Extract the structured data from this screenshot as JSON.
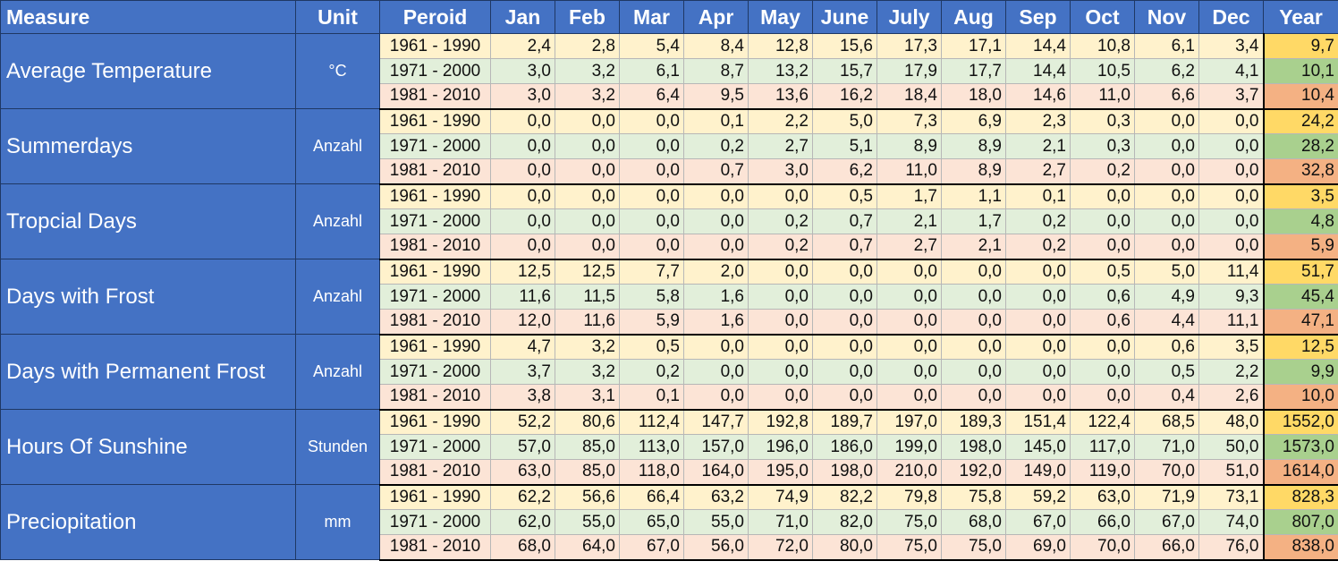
{
  "headers": {
    "measure": "Measure",
    "unit": "Unit",
    "period": "Peroid",
    "months": [
      "Jan",
      "Feb",
      "Mar",
      "Apr",
      "May",
      "June",
      "July",
      "Aug",
      "Sep",
      "Oct",
      "Nov",
      "Dec"
    ],
    "year": "Year"
  },
  "colors": {
    "header_bg": "#4472c4",
    "period_1961_bg": "#fff2cc",
    "period_1971_bg": "#e2efda",
    "period_1981_bg": "#fce4d6",
    "year_1961_bg": "#ffd966",
    "year_1971_bg": "#a9d08e",
    "year_1981_bg": "#f4b183"
  },
  "measures": [
    {
      "name": "Average Temperature",
      "unit": "°C",
      "rows": [
        {
          "period": "1961 - 1990",
          "values": [
            "2,4",
            "2,8",
            "5,4",
            "8,4",
            "12,8",
            "15,6",
            "17,3",
            "17,1",
            "14,4",
            "10,8",
            "6,1",
            "3,4"
          ],
          "year": "9,7"
        },
        {
          "period": "1971 - 2000",
          "values": [
            "3,0",
            "3,2",
            "6,1",
            "8,7",
            "13,2",
            "15,7",
            "17,9",
            "17,7",
            "14,4",
            "10,5",
            "6,2",
            "4,1"
          ],
          "year": "10,1"
        },
        {
          "period": "1981 - 2010",
          "values": [
            "3,0",
            "3,2",
            "6,4",
            "9,5",
            "13,6",
            "16,2",
            "18,4",
            "18,0",
            "14,6",
            "11,0",
            "6,6",
            "3,7"
          ],
          "year": "10,4"
        }
      ]
    },
    {
      "name": "Summerdays",
      "unit": "Anzahl",
      "rows": [
        {
          "period": "1961 - 1990",
          "values": [
            "0,0",
            "0,0",
            "0,0",
            "0,1",
            "2,2",
            "5,0",
            "7,3",
            "6,9",
            "2,3",
            "0,3",
            "0,0",
            "0,0"
          ],
          "year": "24,2"
        },
        {
          "period": "1971 - 2000",
          "values": [
            "0,0",
            "0,0",
            "0,0",
            "0,2",
            "2,7",
            "5,1",
            "8,9",
            "8,9",
            "2,1",
            "0,3",
            "0,0",
            "0,0"
          ],
          "year": "28,2"
        },
        {
          "period": "1981 - 2010",
          "values": [
            "0,0",
            "0,0",
            "0,0",
            "0,7",
            "3,0",
            "6,2",
            "11,0",
            "8,9",
            "2,7",
            "0,2",
            "0,0",
            "0,0"
          ],
          "year": "32,8"
        }
      ]
    },
    {
      "name": "Tropcial Days",
      "unit": "Anzahl",
      "rows": [
        {
          "period": "1961 - 1990",
          "values": [
            "0,0",
            "0,0",
            "0,0",
            "0,0",
            "0,0",
            "0,5",
            "1,7",
            "1,1",
            "0,1",
            "0,0",
            "0,0",
            "0,0"
          ],
          "year": "3,5"
        },
        {
          "period": "1971 - 2000",
          "values": [
            "0,0",
            "0,0",
            "0,0",
            "0,0",
            "0,2",
            "0,7",
            "2,1",
            "1,7",
            "0,2",
            "0,0",
            "0,0",
            "0,0"
          ],
          "year": "4,8"
        },
        {
          "period": "1981 - 2010",
          "values": [
            "0,0",
            "0,0",
            "0,0",
            "0,0",
            "0,2",
            "0,7",
            "2,7",
            "2,1",
            "0,2",
            "0,0",
            "0,0",
            "0,0"
          ],
          "year": "5,9"
        }
      ]
    },
    {
      "name": "Days with Frost",
      "unit": "Anzahl",
      "rows": [
        {
          "period": "1961 - 1990",
          "values": [
            "12,5",
            "12,5",
            "7,7",
            "2,0",
            "0,0",
            "0,0",
            "0,0",
            "0,0",
            "0,0",
            "0,5",
            "5,0",
            "11,4"
          ],
          "year": "51,7"
        },
        {
          "period": "1971 - 2000",
          "values": [
            "11,6",
            "11,5",
            "5,8",
            "1,6",
            "0,0",
            "0,0",
            "0,0",
            "0,0",
            "0,0",
            "0,6",
            "4,9",
            "9,3"
          ],
          "year": "45,4"
        },
        {
          "period": "1981 - 2010",
          "values": [
            "12,0",
            "11,6",
            "5,9",
            "1,6",
            "0,0",
            "0,0",
            "0,0",
            "0,0",
            "0,0",
            "0,6",
            "4,4",
            "11,1"
          ],
          "year": "47,1"
        }
      ]
    },
    {
      "name": "Days with Permanent Frost",
      "unit": "Anzahl",
      "rows": [
        {
          "period": "1961 - 1990",
          "values": [
            "4,7",
            "3,2",
            "0,5",
            "0,0",
            "0,0",
            "0,0",
            "0,0",
            "0,0",
            "0,0",
            "0,0",
            "0,6",
            "3,5"
          ],
          "year": "12,5"
        },
        {
          "period": "1971 - 2000",
          "values": [
            "3,7",
            "3,2",
            "0,2",
            "0,0",
            "0,0",
            "0,0",
            "0,0",
            "0,0",
            "0,0",
            "0,0",
            "0,5",
            "2,2"
          ],
          "year": "9,9"
        },
        {
          "period": "1981 - 2010",
          "values": [
            "3,8",
            "3,1",
            "0,1",
            "0,0",
            "0,0",
            "0,0",
            "0,0",
            "0,0",
            "0,0",
            "0,0",
            "0,4",
            "2,6"
          ],
          "year": "10,0"
        }
      ]
    },
    {
      "name": "Hours Of Sunshine",
      "unit": "Stunden",
      "rows": [
        {
          "period": "1961 - 1990",
          "values": [
            "52,2",
            "80,6",
            "112,4",
            "147,7",
            "192,8",
            "189,7",
            "197,0",
            "189,3",
            "151,4",
            "122,4",
            "68,5",
            "48,0"
          ],
          "year": "1552,0"
        },
        {
          "period": "1971 - 2000",
          "values": [
            "57,0",
            "85,0",
            "113,0",
            "157,0",
            "196,0",
            "186,0",
            "199,0",
            "198,0",
            "145,0",
            "117,0",
            "71,0",
            "50,0"
          ],
          "year": "1573,0"
        },
        {
          "period": "1981 - 2010",
          "values": [
            "63,0",
            "85,0",
            "118,0",
            "164,0",
            "195,0",
            "198,0",
            "210,0",
            "192,0",
            "149,0",
            "119,0",
            "70,0",
            "51,0"
          ],
          "year": "1614,0"
        }
      ]
    },
    {
      "name": "Preciopitation",
      "unit": "mm",
      "rows": [
        {
          "period": "1961 - 1990",
          "values": [
            "62,2",
            "56,6",
            "66,4",
            "63,2",
            "74,9",
            "82,2",
            "79,8",
            "75,8",
            "59,2",
            "63,0",
            "71,9",
            "73,1"
          ],
          "year": "828,3"
        },
        {
          "period": "1971 - 2000",
          "values": [
            "62,0",
            "55,0",
            "65,0",
            "55,0",
            "71,0",
            "82,0",
            "75,0",
            "68,0",
            "67,0",
            "66,0",
            "67,0",
            "74,0"
          ],
          "year": "807,0"
        },
        {
          "period": "1981 - 2010",
          "values": [
            "68,0",
            "64,0",
            "67,0",
            "56,0",
            "72,0",
            "80,0",
            "75,0",
            "75,0",
            "69,0",
            "70,0",
            "66,0",
            "76,0"
          ],
          "year": "838,0"
        }
      ]
    }
  ]
}
